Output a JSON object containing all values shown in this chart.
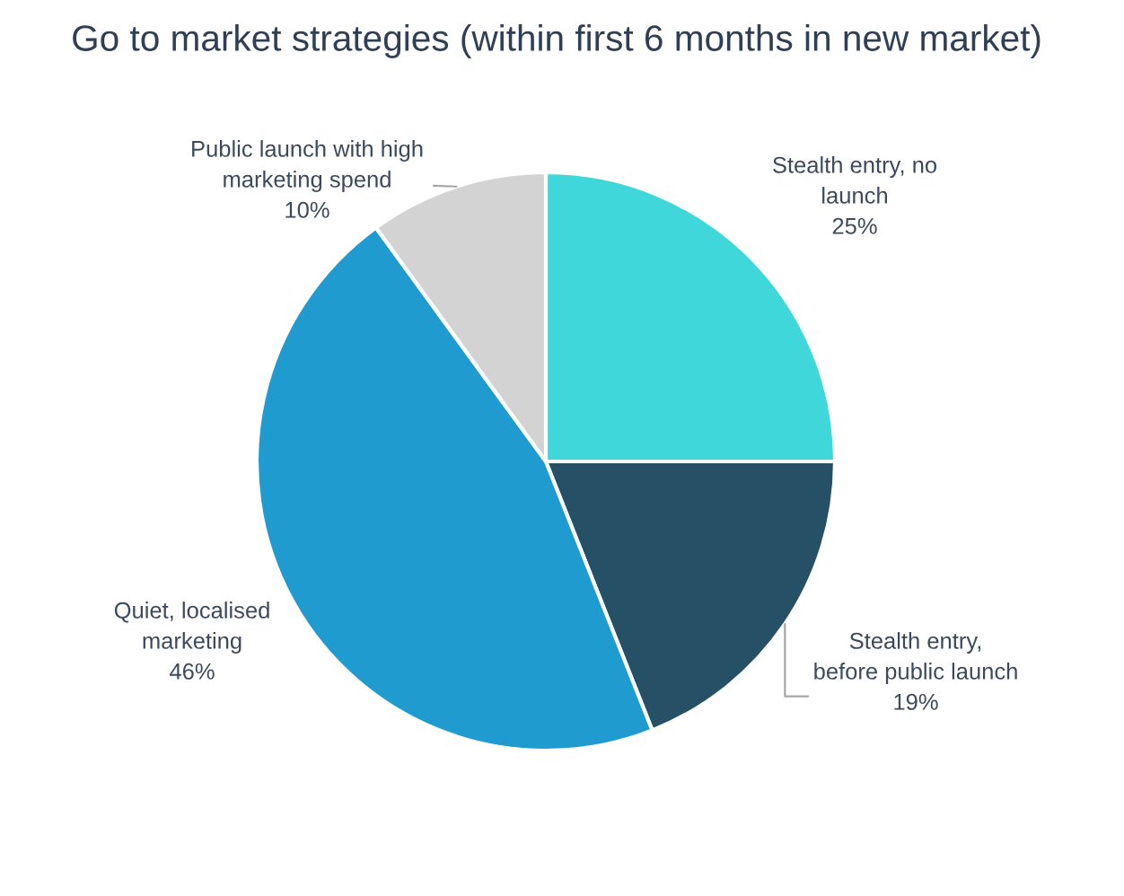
{
  "chart_data": {
    "type": "pie",
    "title": "Go to market strategies (within first 6 months in new market)",
    "categories": [
      "Stealth entry, no\nlaunch",
      "Stealth entry,\nbefore public launch",
      "Quiet, localised\nmarketing",
      "Public launch with high\nmarketing spend"
    ],
    "values": [
      25,
      19,
      46,
      10
    ],
    "value_labels": [
      "25%",
      "19%",
      "46%",
      "10%"
    ],
    "colors": [
      "#3fd7da",
      "#265066",
      "#1f9bd0",
      "#d3d3d3"
    ]
  }
}
